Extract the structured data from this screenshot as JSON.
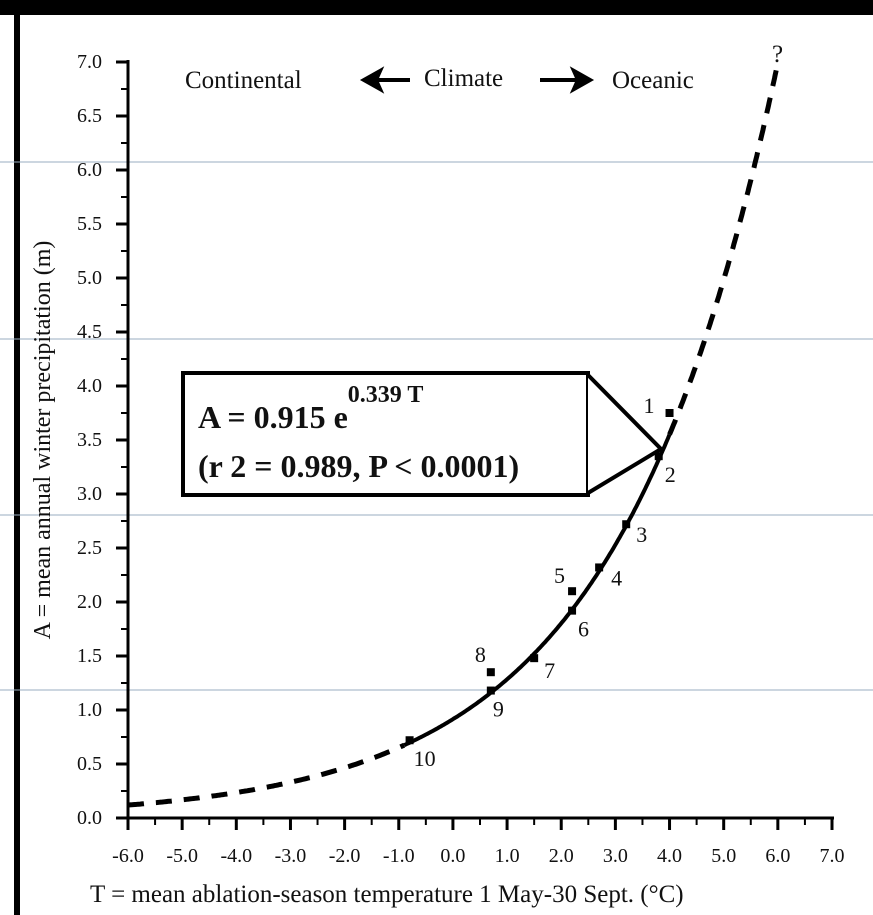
{
  "chart_data": {
    "type": "scatter",
    "xlabel": "T = mean ablation-season temperature 1 May-30 Sept. (°C)",
    "ylabel": "A = mean annual winter precipitation (m)",
    "xlim": [
      -6.0,
      7.0
    ],
    "ylim": [
      0.0,
      7.0
    ],
    "x_ticks": [
      "-6.0",
      "-5.0",
      "-4.0",
      "-3.0",
      "-2.0",
      "-1.0",
      "0.0",
      "1.0",
      "2.0",
      "3.0",
      "4.0",
      "5.0",
      "6.0",
      "7.0"
    ],
    "y_ticks": [
      "0.0",
      "0.5",
      "1.0",
      "1.5",
      "2.0",
      "2.5",
      "3.0",
      "3.5",
      "4.0",
      "4.5",
      "5.0",
      "5.5",
      "6.0",
      "6.5",
      "7.0"
    ],
    "grid": false,
    "points": [
      {
        "label": "1",
        "x": 4.0,
        "y": 3.75
      },
      {
        "label": "2",
        "x": 3.8,
        "y": 3.35
      },
      {
        "label": "3",
        "x": 3.2,
        "y": 2.72
      },
      {
        "label": "4",
        "x": 2.7,
        "y": 2.32
      },
      {
        "label": "5",
        "x": 2.2,
        "y": 2.1
      },
      {
        "label": "6",
        "x": 2.2,
        "y": 1.92
      },
      {
        "label": "7",
        "x": 1.5,
        "y": 1.48
      },
      {
        "label": "8",
        "x": 0.7,
        "y": 1.35
      },
      {
        "label": "9",
        "x": 0.7,
        "y": 1.18
      },
      {
        "label": "10",
        "x": -0.8,
        "y": 0.72
      }
    ],
    "fit": {
      "a": 0.915,
      "b": 0.339,
      "solid_range": [
        -0.9,
        4.0
      ],
      "dashed_range": [
        -6.0,
        6.0
      ],
      "end_mark": "?"
    },
    "equation_line1": "A = 0.915 e",
    "equation_exponent": "0.339 T",
    "equation_line2": "(r 2 = 0.989, P < 0.0001)",
    "climate_arrow": {
      "left": "Continental",
      "center": "Climate",
      "right": "Oceanic"
    }
  }
}
